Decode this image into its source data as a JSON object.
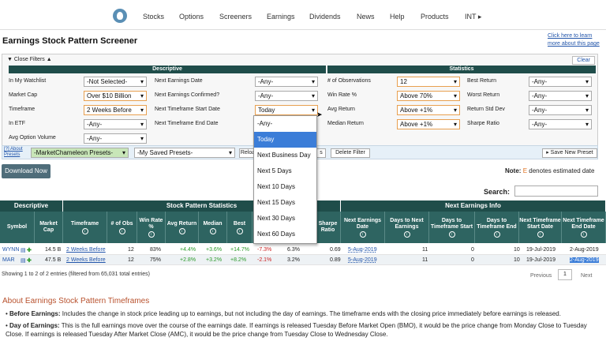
{
  "nav": {
    "items": [
      "Stocks",
      "Options",
      "Screeners",
      "Earnings",
      "Dividends",
      "News",
      "Help",
      "Products",
      "INT ▸"
    ]
  },
  "page": {
    "title": "Earnings Stock Pattern Screener",
    "help_link_1": "Click here to learn",
    "help_link_2": "more about this page"
  },
  "filters": {
    "close_label": "Close Filters ▲",
    "clear_label": "Clear",
    "descriptive_head": "Descriptive",
    "statistics_head": "Statistics",
    "rows": [
      {
        "l1": "In My Watchlist",
        "v1": "-Not Selected-",
        "l2": "Next Earnings Date",
        "v2": "-Any-",
        "l3": "# of Observations",
        "v3": "12",
        "l4": "Best Return",
        "v4": "-Any-"
      },
      {
        "l1": "Market Cap",
        "v1": "Over $10 Billion",
        "l2": "Next Earnings Confirmed?",
        "v2": "-Any-",
        "l3": "Win Rate %",
        "v3": "Above 70%",
        "l4": "Worst Return",
        "v4": "-Any-"
      },
      {
        "l1": "Timeframe",
        "v1": "2 Weeks Before",
        "l2": "Next Timeframe Start Date",
        "v2": "Today",
        "l3": "Avg Return",
        "v3": "Above +1%",
        "l4": "Return Std Dev",
        "v4": "-Any-"
      },
      {
        "l1": "In ETF",
        "v1": "-Any-",
        "l2": "Next Timeframe End Date",
        "v2": "",
        "l3": "Median Return",
        "v3": "Above +1%",
        "l4": "Sharpe Ratio",
        "v4": "-Any-"
      },
      {
        "l1": "Avg Option Volume",
        "v1": "-Any-",
        "l2": "",
        "v2": "",
        "l3": "",
        "v3": "",
        "l4": "",
        "v4": ""
      }
    ]
  },
  "presets": {
    "about_label": "[?] About Presets",
    "market_presets": "-MarketChameleon Presets-",
    "saved_presets": "-My Saved Presets-",
    "reload": "Reloa",
    "s": "s",
    "delete": "Delete Filter",
    "save_new": "▸ Save New Preset"
  },
  "dropdown": {
    "options": [
      "-Any-",
      "Today",
      "Next Business Day",
      "Next 5 Days",
      "Next 10 Days",
      "Next 15 Days",
      "Next 30 Days",
      "Next 60 Days"
    ]
  },
  "download_label": "Download Now",
  "note": {
    "prefix": "Note:",
    "e": "E",
    "text": "denotes estimated date"
  },
  "search_label": "Search:",
  "table": {
    "groups": [
      "Descriptive",
      "Stock Pattern Statistics",
      "Next Earnings Info"
    ],
    "headers": [
      "Symbol",
      "Market Cap",
      "Timeframe",
      "# of Obs",
      "Win Rate %",
      "Avg Return",
      "Median",
      "Best",
      "",
      "Sharpe Ratio",
      "Next Earnings Date",
      "Days to Next Earnings",
      "Days to Timeframe Start",
      "Days to Timeframe End",
      "Next Timeframe Start Date",
      "Next Timeframe End Date"
    ],
    "rows": [
      {
        "symbol": "WYNN",
        "cap": "14.5 B",
        "timeframe": "2 Weeks Before",
        "obs": "12",
        "win": "83%",
        "avg": "+4.4%",
        "median": "+3.6%",
        "best": "+14.7%",
        "worst": "-7.3%",
        "std": "6.3%",
        "sharpe": "0.69",
        "earn": "5-Aug-2019",
        "days_next": "11",
        "days_start": "0",
        "days_end": "10",
        "start": "19-Jul-2019",
        "end": "2-Aug-2019"
      },
      {
        "symbol": "MAR",
        "cap": "47.5 B",
        "timeframe": "2 Weeks Before",
        "obs": "12",
        "win": "75%",
        "avg": "+2.8%",
        "median": "+3.2%",
        "best": "+8.2%",
        "worst": "-2.1%",
        "std": "3.2%",
        "sharpe": "0.89",
        "earn": "5-Aug-2019",
        "days_next": "11",
        "days_start": "0",
        "days_end": "10",
        "start": "19-Jul-2019",
        "end": "2-Aug-2019"
      }
    ]
  },
  "footer": {
    "showing": "Showing 1 to 2 of 2 entries (filtered from 65,031 total entries)",
    "previous": "Previous",
    "page": "1",
    "next": "Next"
  },
  "about": {
    "title": "About Earnings Stock Pattern Timeframes",
    "p1_bold": "Before Earnings:",
    "p1": "Includes the change in stock price leading up to earnings, but not including the day of earnings. The timeframe ends with the closing price immediately before earnings is released.",
    "p2_bold": "Day of Earnings:",
    "p2": "This is the full earnings move over the course of the earnings date. If earnings is released Tuesday Before Market Open (BMO), it would be the price change from Monday Close to Tuesday",
    "p3": "Close. If earnings is released Tuesday After Market Close (AMC), it would be the price change from Tuesday Close to Wednesday Close."
  }
}
